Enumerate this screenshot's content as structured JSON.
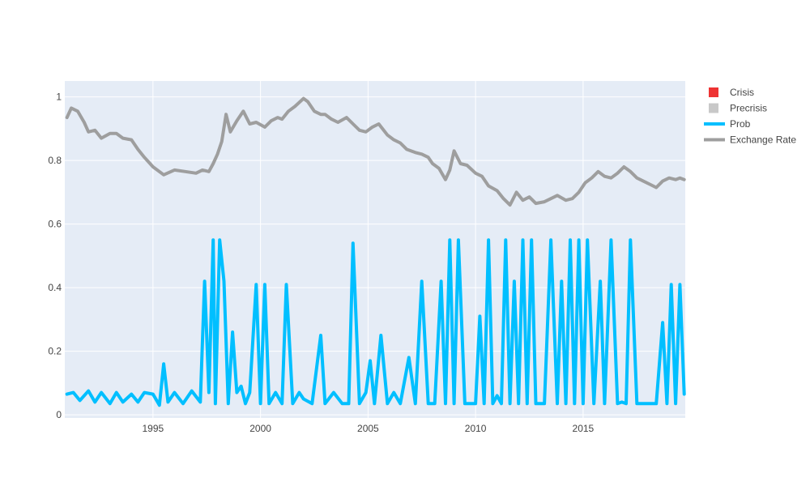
{
  "chart_data": {
    "type": "line",
    "title": "",
    "xlabel": "",
    "ylabel": "",
    "xlim": [
      1990.9,
      2019.75
    ],
    "ylim": [
      -0.01,
      1.05
    ],
    "grid": true,
    "legend_position": "top-right",
    "x_ticks": [
      1995,
      2000,
      2005,
      2010,
      2015
    ],
    "x_tick_labels": [
      "1995",
      "2000",
      "2005",
      "2010",
      "2015"
    ],
    "y_ticks": [
      0,
      0.2,
      0.4,
      0.6,
      0.8,
      1
    ],
    "y_tick_labels": [
      "0",
      "0.2",
      "0.4",
      "0.6",
      "0.8",
      "1"
    ],
    "legend": [
      {
        "name": "Crisis",
        "kind": "square",
        "color": "#ee3333"
      },
      {
        "name": "Precrisis",
        "kind": "square",
        "color": "#c8c8c8"
      },
      {
        "name": "Prob",
        "kind": "line",
        "color": "#00bfff"
      },
      {
        "name": "Exchange Rate",
        "kind": "line",
        "color": "#9e9e9e"
      }
    ],
    "series": [
      {
        "name": "Exchange Rate",
        "color": "#9e9e9e",
        "x": [
          1991.0,
          1991.2,
          1991.5,
          1991.8,
          1992.0,
          1992.3,
          1992.6,
          1993.0,
          1993.3,
          1993.6,
          1994.0,
          1994.3,
          1994.6,
          1995.0,
          1995.5,
          1996.0,
          1996.5,
          1997.0,
          1997.3,
          1997.6,
          1997.8,
          1998.0,
          1998.2,
          1998.4,
          1998.6,
          1998.9,
          1999.2,
          1999.5,
          1999.8,
          2000.2,
          2000.5,
          2000.8,
          2001.0,
          2001.3,
          2001.6,
          2002.0,
          2002.2,
          2002.5,
          2002.8,
          2003.0,
          2003.3,
          2003.6,
          2004.0,
          2004.3,
          2004.6,
          2004.9,
          2005.2,
          2005.5,
          2005.9,
          2006.2,
          2006.5,
          2006.8,
          2007.2,
          2007.5,
          2007.8,
          2008.0,
          2008.3,
          2008.6,
          2008.8,
          2009.0,
          2009.3,
          2009.6,
          2010.0,
          2010.3,
          2010.6,
          2011.0,
          2011.3,
          2011.6,
          2011.9,
          2012.2,
          2012.5,
          2012.8,
          2013.2,
          2013.5,
          2013.8,
          2014.2,
          2014.5,
          2014.8,
          2015.1,
          2015.4,
          2015.7,
          2016.0,
          2016.3,
          2016.6,
          2016.9,
          2017.2,
          2017.5,
          2017.8,
          2018.1,
          2018.4,
          2018.7,
          2019.0,
          2019.3,
          2019.5,
          2019.7
        ],
        "values": [
          0.935,
          0.965,
          0.955,
          0.92,
          0.89,
          0.895,
          0.87,
          0.885,
          0.885,
          0.87,
          0.865,
          0.835,
          0.81,
          0.78,
          0.755,
          0.77,
          0.765,
          0.76,
          0.77,
          0.765,
          0.79,
          0.82,
          0.86,
          0.945,
          0.89,
          0.925,
          0.955,
          0.915,
          0.92,
          0.905,
          0.925,
          0.935,
          0.93,
          0.955,
          0.97,
          0.995,
          0.985,
          0.955,
          0.945,
          0.945,
          0.93,
          0.92,
          0.935,
          0.915,
          0.895,
          0.89,
          0.905,
          0.915,
          0.88,
          0.865,
          0.855,
          0.835,
          0.825,
          0.82,
          0.81,
          0.79,
          0.775,
          0.74,
          0.77,
          0.83,
          0.79,
          0.785,
          0.76,
          0.75,
          0.72,
          0.705,
          0.68,
          0.66,
          0.7,
          0.675,
          0.685,
          0.665,
          0.67,
          0.68,
          0.69,
          0.675,
          0.68,
          0.7,
          0.73,
          0.745,
          0.765,
          0.75,
          0.745,
          0.76,
          0.78,
          0.765,
          0.745,
          0.735,
          0.725,
          0.715,
          0.735,
          0.745,
          0.74,
          0.745,
          0.74
        ]
      },
      {
        "name": "Prob",
        "color": "#00bfff",
        "x": [
          1991.0,
          1991.3,
          1991.6,
          1992.0,
          1992.3,
          1992.6,
          1993.0,
          1993.3,
          1993.6,
          1994.0,
          1994.3,
          1994.6,
          1995.0,
          1995.3,
          1995.5,
          1995.7,
          1996.0,
          1996.4,
          1996.8,
          1997.2,
          1997.4,
          1997.6,
          1997.8,
          1997.9,
          1998.1,
          1998.3,
          1998.5,
          1998.7,
          1998.9,
          1999.1,
          1999.3,
          1999.5,
          1999.8,
          2000.0,
          2000.2,
          2000.4,
          2000.7,
          2001.0,
          2001.2,
          2001.5,
          2001.8,
          2002.0,
          2002.4,
          2002.8,
          2003.0,
          2003.4,
          2003.8,
          2004.1,
          2004.3,
          2004.6,
          2004.9,
          2005.1,
          2005.3,
          2005.6,
          2005.9,
          2006.2,
          2006.5,
          2006.9,
          2007.2,
          2007.5,
          2007.8,
          2008.1,
          2008.4,
          2008.6,
          2008.8,
          2009.0,
          2009.2,
          2009.5,
          2009.8,
          2010.0,
          2010.2,
          2010.4,
          2010.6,
          2010.8,
          2011.0,
          2011.2,
          2011.4,
          2011.6,
          2011.8,
          2012.0,
          2012.2,
          2012.4,
          2012.6,
          2012.8,
          2013.0,
          2013.2,
          2013.5,
          2013.8,
          2014.0,
          2014.2,
          2014.4,
          2014.6,
          2014.8,
          2015.0,
          2015.2,
          2015.5,
          2015.8,
          2016.0,
          2016.3,
          2016.6,
          2016.8,
          2017.0,
          2017.2,
          2017.5,
          2017.8,
          2018.1,
          2018.4,
          2018.7,
          2018.9,
          2019.1,
          2019.3,
          2019.5,
          2019.7
        ],
        "values": [
          0.065,
          0.07,
          0.045,
          0.075,
          0.04,
          0.07,
          0.035,
          0.07,
          0.04,
          0.065,
          0.04,
          0.07,
          0.065,
          0.03,
          0.16,
          0.04,
          0.07,
          0.035,
          0.075,
          0.04,
          0.42,
          0.07,
          0.55,
          0.035,
          0.55,
          0.42,
          0.035,
          0.26,
          0.07,
          0.09,
          0.035,
          0.07,
          0.41,
          0.035,
          0.41,
          0.035,
          0.07,
          0.035,
          0.41,
          0.035,
          0.07,
          0.05,
          0.035,
          0.25,
          0.035,
          0.07,
          0.035,
          0.035,
          0.54,
          0.035,
          0.07,
          0.17,
          0.035,
          0.25,
          0.035,
          0.07,
          0.035,
          0.18,
          0.035,
          0.42,
          0.035,
          0.035,
          0.42,
          0.035,
          0.55,
          0.035,
          0.55,
          0.035,
          0.035,
          0.035,
          0.31,
          0.035,
          0.55,
          0.035,
          0.06,
          0.035,
          0.55,
          0.035,
          0.42,
          0.035,
          0.55,
          0.035,
          0.55,
          0.035,
          0.035,
          0.035,
          0.55,
          0.035,
          0.42,
          0.035,
          0.55,
          0.035,
          0.55,
          0.035,
          0.55,
          0.035,
          0.42,
          0.035,
          0.55,
          0.035,
          0.04,
          0.035,
          0.55,
          0.035,
          0.035,
          0.035,
          0.035,
          0.29,
          0.035,
          0.41,
          0.035,
          0.41,
          0.065
        ]
      }
    ]
  }
}
